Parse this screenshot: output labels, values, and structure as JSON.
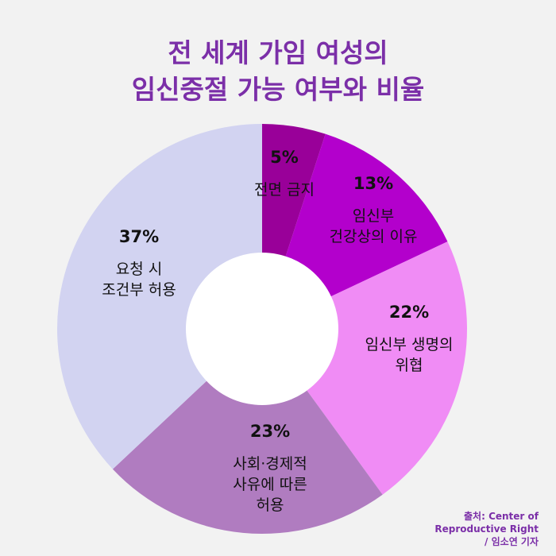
{
  "title": [
    "전 세계 가임 여성의",
    "임신중절 가능 여부와 비율"
  ],
  "chart_data": {
    "type": "pie",
    "donut": true,
    "slices": [
      {
        "pct_label": "5%",
        "value": 5,
        "label": [
          "전면 금지"
        ],
        "color": "#990099"
      },
      {
        "pct_label": "13%",
        "value": 13,
        "label": [
          "임신부",
          "건강상의 이유"
        ],
        "color": "#b300cc"
      },
      {
        "pct_label": "22%",
        "value": 22,
        "label": [
          "임신부 생명의",
          "위협"
        ],
        "color": "#f08cf5"
      },
      {
        "pct_label": "23%",
        "value": 23,
        "label": [
          "사회·경제적",
          "사유에 따른",
          "허용"
        ],
        "color": "#b07cc0"
      },
      {
        "pct_label": "37%",
        "value": 37,
        "label": [
          "요청 시",
          "조건부 허용"
        ],
        "color": "#d2d3f1"
      }
    ]
  },
  "source": [
    "출처: Center of",
    "Reproductive Right",
    "/ 임소연 기자"
  ]
}
